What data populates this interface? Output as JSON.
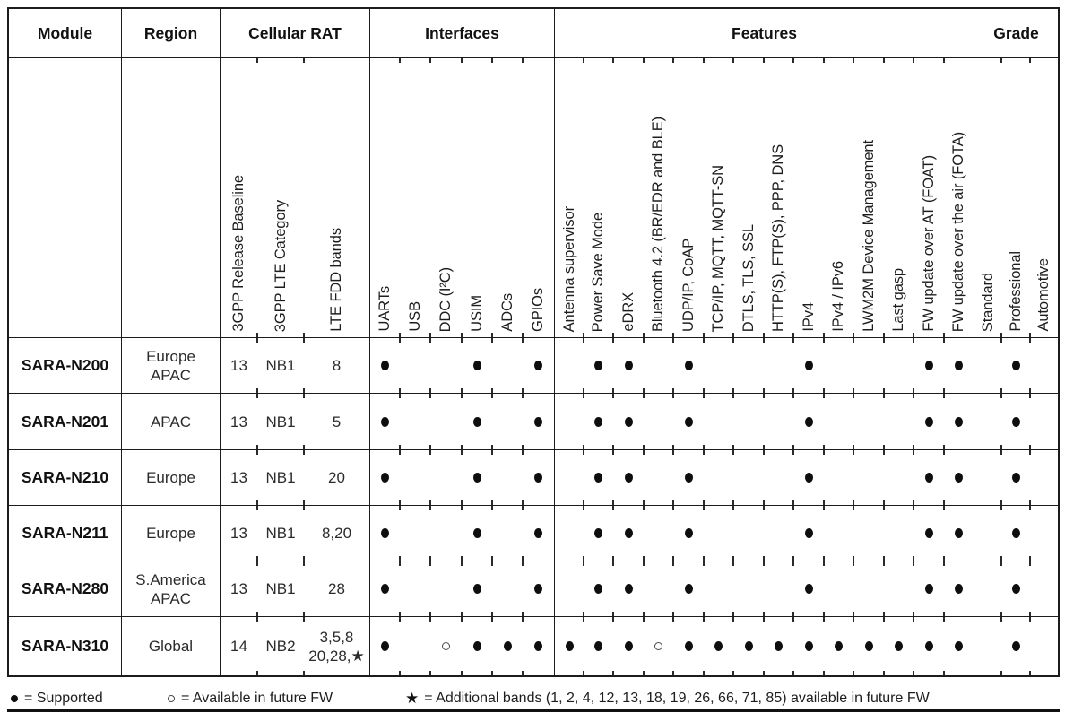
{
  "table": {
    "sections": [
      {
        "id": "module",
        "label": "Module"
      },
      {
        "id": "region",
        "label": "Region"
      },
      {
        "id": "cellular_rat",
        "label": "Cellular RAT",
        "columns": [
          "3GPP Release Baseline",
          "3GPP LTE Category",
          "LTE FDD bands"
        ]
      },
      {
        "id": "interfaces",
        "label": "Interfaces",
        "columns": [
          "UARTs",
          "USB",
          "DDC (I²C)",
          "USIM",
          "ADCs",
          "GPIOs"
        ]
      },
      {
        "id": "features",
        "label": "Features",
        "columns": [
          "Antenna supervisor",
          "Power Save Mode",
          "eDRX",
          "Bluetooth 4.2 (BR/EDR and BLE)",
          "UDP/IP, CoAP",
          "TCP/IP, MQTT, MQTT-SN",
          "DTLS, TLS, SSL",
          "HTTP(S), FTP(S), PPP, DNS",
          "IPv4",
          "IPv4 / IPv6",
          "LWM2M Device Management",
          "Last gasp",
          "FW update over AT (FOAT)",
          "FW update over the air (FOTA)"
        ]
      },
      {
        "id": "grade",
        "label": "Grade",
        "columns": [
          "Standard",
          "Professional",
          "Automotive"
        ]
      }
    ],
    "rows": [
      {
        "module": "SARA-N200",
        "region": [
          "Europe",
          "APAC"
        ],
        "rat": {
          "release": "13",
          "category": "NB1",
          "bands": [
            "8"
          ]
        },
        "interfaces": [
          "filled",
          "",
          "",
          "filled",
          "",
          "filled"
        ],
        "features": [
          "",
          "filled",
          "filled",
          "",
          "filled",
          "",
          "",
          "",
          "filled",
          "",
          "",
          "",
          "filled",
          "filled"
        ],
        "grade": [
          "",
          "filled",
          ""
        ]
      },
      {
        "module": "SARA-N201",
        "region": [
          "APAC"
        ],
        "rat": {
          "release": "13",
          "category": "NB1",
          "bands": [
            "5"
          ]
        },
        "interfaces": [
          "filled",
          "",
          "",
          "filled",
          "",
          "filled"
        ],
        "features": [
          "",
          "filled",
          "filled",
          "",
          "filled",
          "",
          "",
          "",
          "filled",
          "",
          "",
          "",
          "filled",
          "filled"
        ],
        "grade": [
          "",
          "filled",
          ""
        ]
      },
      {
        "module": "SARA-N210",
        "region": [
          "Europe"
        ],
        "rat": {
          "release": "13",
          "category": "NB1",
          "bands": [
            "20"
          ]
        },
        "interfaces": [
          "filled",
          "",
          "",
          "filled",
          "",
          "filled"
        ],
        "features": [
          "",
          "filled",
          "filled",
          "",
          "filled",
          "",
          "",
          "",
          "filled",
          "",
          "",
          "",
          "filled",
          "filled"
        ],
        "grade": [
          "",
          "filled",
          ""
        ]
      },
      {
        "module": "SARA-N211",
        "region": [
          "Europe"
        ],
        "rat": {
          "release": "13",
          "category": "NB1",
          "bands": [
            "8,20"
          ]
        },
        "interfaces": [
          "filled",
          "",
          "",
          "filled",
          "",
          "filled"
        ],
        "features": [
          "",
          "filled",
          "filled",
          "",
          "filled",
          "",
          "",
          "",
          "filled",
          "",
          "",
          "",
          "filled",
          "filled"
        ],
        "grade": [
          "",
          "filled",
          ""
        ]
      },
      {
        "module": "SARA-N280",
        "region": [
          "S.America",
          "APAC"
        ],
        "rat": {
          "release": "13",
          "category": "NB1",
          "bands": [
            "28"
          ]
        },
        "interfaces": [
          "filled",
          "",
          "",
          "filled",
          "",
          "filled"
        ],
        "features": [
          "",
          "filled",
          "filled",
          "",
          "filled",
          "",
          "",
          "",
          "filled",
          "",
          "",
          "",
          "filled",
          "filled"
        ],
        "grade": [
          "",
          "filled",
          ""
        ]
      },
      {
        "module": "SARA-N310",
        "region": [
          "Global"
        ],
        "rat": {
          "release": "14",
          "category": "NB2",
          "bands": [
            "3,5,8",
            "20,28,★"
          ]
        },
        "interfaces": [
          "filled",
          "",
          "hollow",
          "filled",
          "filled",
          "filled"
        ],
        "features": [
          "filled",
          "filled",
          "filled",
          "hollow",
          "filled",
          "filled",
          "filled",
          "filled",
          "filled",
          "filled",
          "filled",
          "filled",
          "filled",
          "filled"
        ],
        "grade": [
          "",
          "filled",
          ""
        ]
      }
    ]
  },
  "legend": {
    "supported": {
      "symbol": "●",
      "text": "= Supported"
    },
    "future": {
      "symbol": "○",
      "text": "= Available in future FW"
    },
    "star": {
      "symbol": "★",
      "text": "= Additional bands (1, 2, 4, 12, 13, 18, 19, 26, 66, 71, 85) available in future FW"
    }
  },
  "colors": {
    "border": "#1c1c1c",
    "text": "#1d1d1d",
    "mark": "#0e0e0e"
  }
}
